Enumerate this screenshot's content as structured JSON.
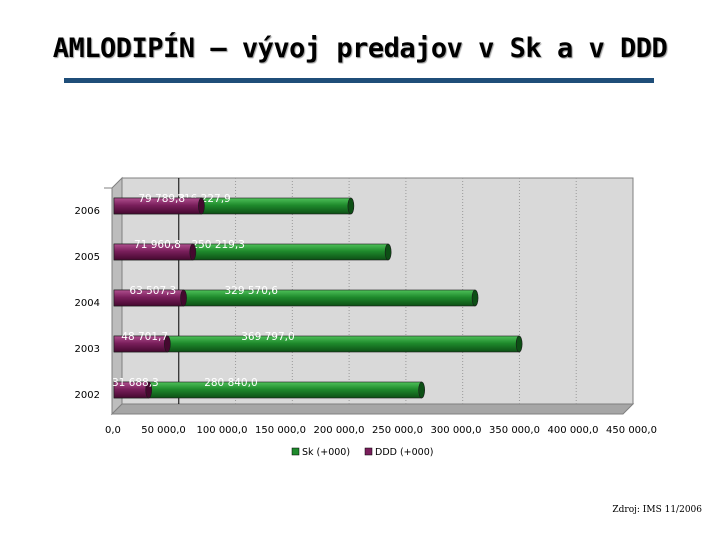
{
  "title": "AMLODIPÍN – vývoj predajov v Sk a v DDD",
  "source": "Zdroj: IMS 11/2006",
  "colors": {
    "sk": "#1f8a2c",
    "ddd": "#7a1f5c",
    "plot_bg": "#d9d9d9",
    "title_rule": "#1f4e79"
  },
  "chart_data": {
    "type": "bar",
    "orientation": "horizontal",
    "stacked": true,
    "categories": [
      "2006",
      "2005",
      "2004",
      "2003",
      "2002"
    ],
    "series": [
      {
        "name": "Sk (+000)",
        "values": [
          216227.9,
          250219.3,
          329570.6,
          369797.0,
          280840.0
        ],
        "labels": [
          "216 227,9",
          "250 219,3",
          "329 570,6",
          "369 797,0",
          "280 840,0"
        ]
      },
      {
        "name": "DDD (+000)",
        "values": [
          79789.8,
          71960.8,
          63507.3,
          48701.7,
          31688.3
        ],
        "labels": [
          "79 789,8",
          "71 960,8",
          "63 507,3",
          "48 701,7",
          "31 688,3"
        ]
      }
    ],
    "xlim": [
      0,
      450000
    ],
    "xticks": [
      "0,0",
      "50 000,0",
      "100 000,0",
      "150 000,0",
      "200 000,0",
      "250 000,0",
      "300 000,0",
      "350 000,0",
      "400 000,0",
      "450 000,0"
    ],
    "grid": "vertical",
    "legend": "bottom"
  }
}
